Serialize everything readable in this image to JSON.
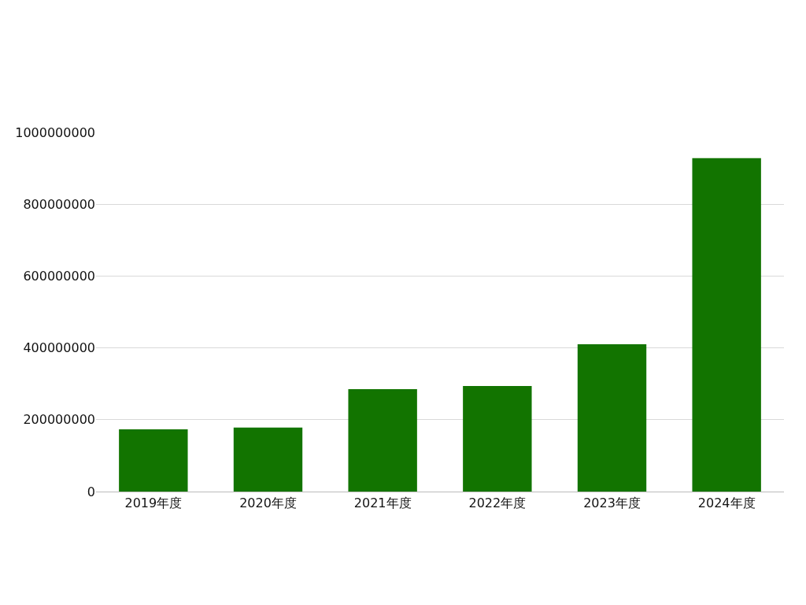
{
  "chart_data": {
    "type": "bar",
    "categories": [
      "2019年度",
      "2020年度",
      "2021年度",
      "2022年度",
      "2023年度",
      "2024年度"
    ],
    "values": [
      173000000,
      178000000,
      285000000,
      294000000,
      410000000,
      928000000
    ],
    "color": "#127400",
    "ylim": [
      0,
      1000000000
    ],
    "yticks": [
      0,
      200000000,
      400000000,
      600000000,
      800000000,
      1000000000
    ],
    "grid": "y"
  }
}
